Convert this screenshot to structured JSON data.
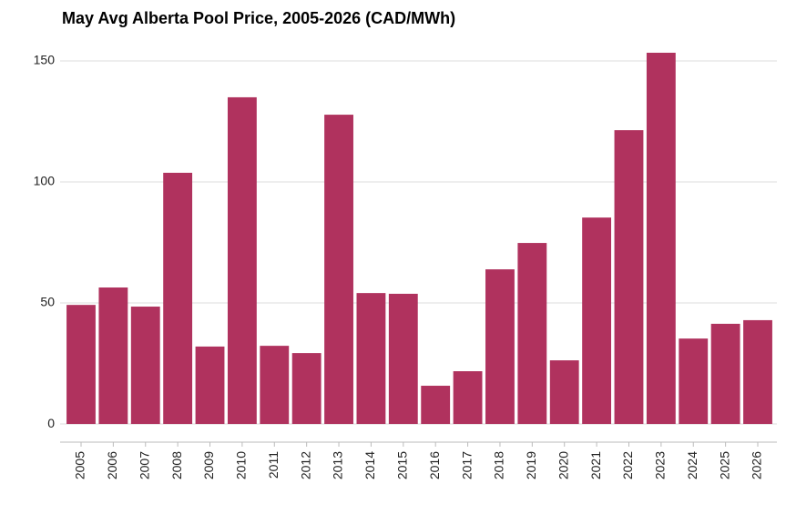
{
  "chart_data": {
    "type": "bar",
    "title": "May Avg Alberta Pool Price, 2005-2026 (CAD/MWh)",
    "categories": [
      "2005",
      "2006",
      "2007",
      "2008",
      "2009",
      "2010",
      "2011",
      "2012",
      "2013",
      "2014",
      "2015",
      "2016",
      "2017",
      "2018",
      "2019",
      "2020",
      "2021",
      "2022",
      "2023",
      "2024",
      "2025",
      "2026"
    ],
    "values": [
      49.2,
      56.4,
      48.5,
      103.8,
      32,
      135,
      32.3,
      29.3,
      127.8,
      54.1,
      53.8,
      15.8,
      21.8,
      63.9,
      74.8,
      26.3,
      85.3,
      121.4,
      153.4,
      35.3,
      41.4,
      42.9
    ],
    "color": "#b0325e",
    "ylim": [
      -7.5,
      157
    ],
    "yticks": [
      0,
      50,
      100,
      150
    ],
    "grid": true
  }
}
